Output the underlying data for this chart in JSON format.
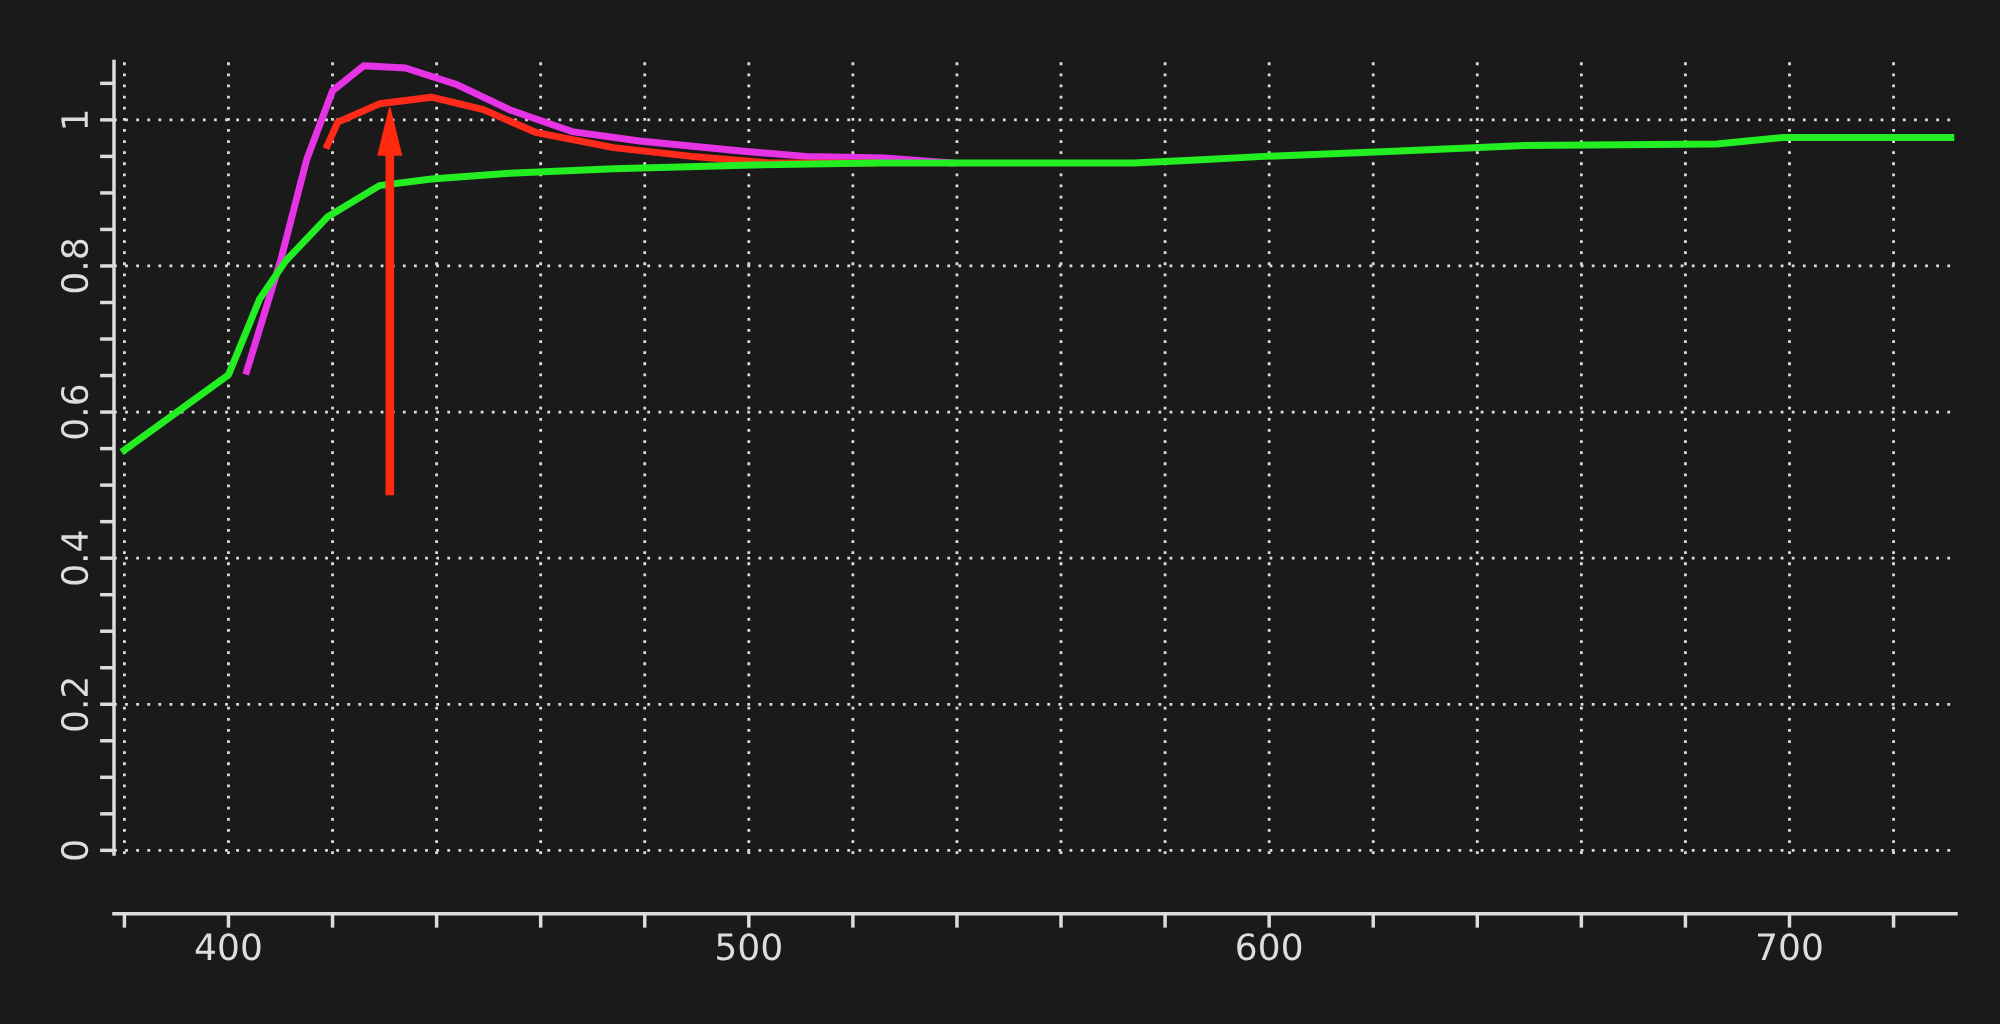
{
  "chart_data": {
    "type": "line",
    "xlim": [
      378,
      732
    ],
    "ylim": [
      -0.005,
      1.08
    ],
    "xticks": [
      {
        "value": 380,
        "label": null
      },
      400,
      {
        "value": 420,
        "label": null
      },
      {
        "value": 440,
        "label": null
      },
      {
        "value": 460,
        "label": null
      },
      {
        "value": 480,
        "label": null
      },
      500,
      {
        "value": 520,
        "label": null
      },
      {
        "value": 540,
        "label": null
      },
      {
        "value": 560,
        "label": null
      },
      {
        "value": 580,
        "label": null
      },
      600,
      {
        "value": 620,
        "label": null
      },
      {
        "value": 640,
        "label": null
      },
      {
        "value": 660,
        "label": null
      },
      {
        "value": 680,
        "label": null
      },
      700,
      {
        "value": 720,
        "label": null
      }
    ],
    "yticks": [
      0,
      {
        "value": 0.05,
        "label": null
      },
      {
        "value": 0.1,
        "label": null
      },
      {
        "value": 0.15,
        "label": null
      },
      0.2,
      {
        "value": 0.25,
        "label": null
      },
      {
        "value": 0.3,
        "label": null
      },
      {
        "value": 0.35,
        "label": null
      },
      0.4,
      {
        "value": 0.45,
        "label": null
      },
      {
        "value": 0.5,
        "label": null
      },
      {
        "value": 0.55,
        "label": null
      },
      0.6,
      {
        "value": 0.65,
        "label": null
      },
      {
        "value": 0.7,
        "label": null
      },
      {
        "value": 0.75,
        "label": null
      },
      0.8,
      {
        "value": 0.85,
        "label": null
      },
      {
        "value": 0.9,
        "label": null
      },
      {
        "value": 0.95,
        "label": null
      },
      1,
      {
        "value": 1.05,
        "label": null
      }
    ],
    "grid": true,
    "marker": "none",
    "line_style": "solid",
    "series": [
      {
        "color": "#e633e6",
        "x": [
          403.5,
          410,
          415,
          420,
          426,
          434,
          444,
          454,
          466,
          479,
          499,
          511,
          526,
          539
        ],
        "values": [
          0.656,
          0.807,
          0.945,
          1.04,
          1.074,
          1.071,
          1.048,
          1.014,
          0.984,
          0.971,
          0.957,
          0.95,
          0.948,
          0.941
        ]
      },
      {
        "color": "#ff2a1a",
        "x": [
          419,
          421,
          429,
          439,
          449,
          459,
          474,
          489,
          504,
          524
        ],
        "values": [
          0.965,
          0.997,
          1.022,
          1.031,
          1.014,
          0.983,
          0.962,
          0.95,
          0.941,
          0.941
        ]
      },
      {
        "color": "#22ee22",
        "x": [
          380,
          400,
          406,
          411,
          419,
          429,
          439,
          454,
          474,
          499,
          524,
          574,
          586,
          599,
          624,
          649,
          686,
          699,
          731
        ],
        "values": [
          0.548,
          0.651,
          0.755,
          0.807,
          0.867,
          0.91,
          0.919,
          0.927,
          0.933,
          0.938,
          0.941,
          0.941,
          0.945,
          0.95,
          0.957,
          0.965,
          0.967,
          0.976,
          0.976
        ]
      }
    ]
  }
}
